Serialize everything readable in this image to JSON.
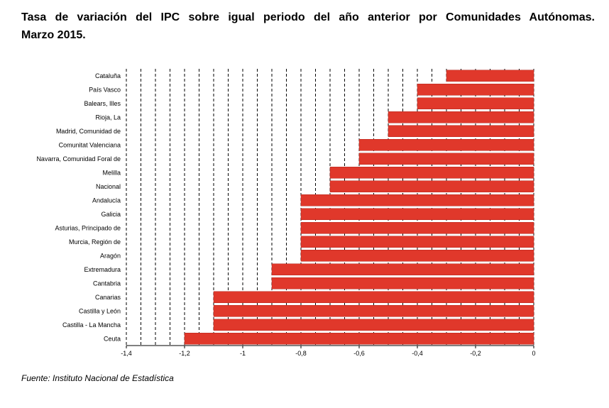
{
  "title_line1": "Tasa de variación del IPC sobre igual periodo del año anterior por Comunidades Autónomas.",
  "title_line2": "Marzo 2015.",
  "source": "Fuente: Instituto Nacional de Estadística",
  "colors": {
    "bar": "#e0382b",
    "bar_stroke": "#b22a20",
    "grid": "#000000"
  },
  "chart_data": {
    "type": "bar",
    "orientation": "horizontal",
    "title": "Tasa de variación del IPC sobre igual periodo del año anterior por Comunidades Autónomas. Marzo 2015.",
    "categories": [
      "Cataluña",
      "País Vasco",
      "Balears, Illes",
      "Rioja, La",
      "Madrid, Comunidad de",
      "Comunitat Valenciana",
      "Navarra, Comunidad Foral de",
      "Melilla",
      "Nacional",
      "Andalucía",
      "Galicia",
      "Asturias, Principado de",
      "Murcia, Región de",
      "Aragón",
      "Extremadura",
      "Cantabria",
      "Canarias",
      "Castilla y León",
      "Castilla - La Mancha",
      "Ceuta"
    ],
    "values": [
      -0.3,
      -0.4,
      -0.4,
      -0.5,
      -0.5,
      -0.6,
      -0.6,
      -0.7,
      -0.7,
      -0.8,
      -0.8,
      -0.8,
      -0.8,
      -0.8,
      -0.9,
      -0.9,
      -1.1,
      -1.1,
      -1.1,
      -1.2
    ],
    "xlim": [
      -1.4,
      0
    ],
    "xticks": [
      -1.4,
      -1.2,
      -1,
      -0.8,
      -0.6,
      -0.4,
      -0.2,
      0
    ],
    "xtick_labels": [
      "-1,4",
      "-1,2",
      "-1",
      "-0,8",
      "-0,6",
      "-0,4",
      "-0,2",
      "0"
    ],
    "grid_step": 0.05,
    "grid": "vertical dashed",
    "xlabel": "",
    "ylabel": ""
  }
}
